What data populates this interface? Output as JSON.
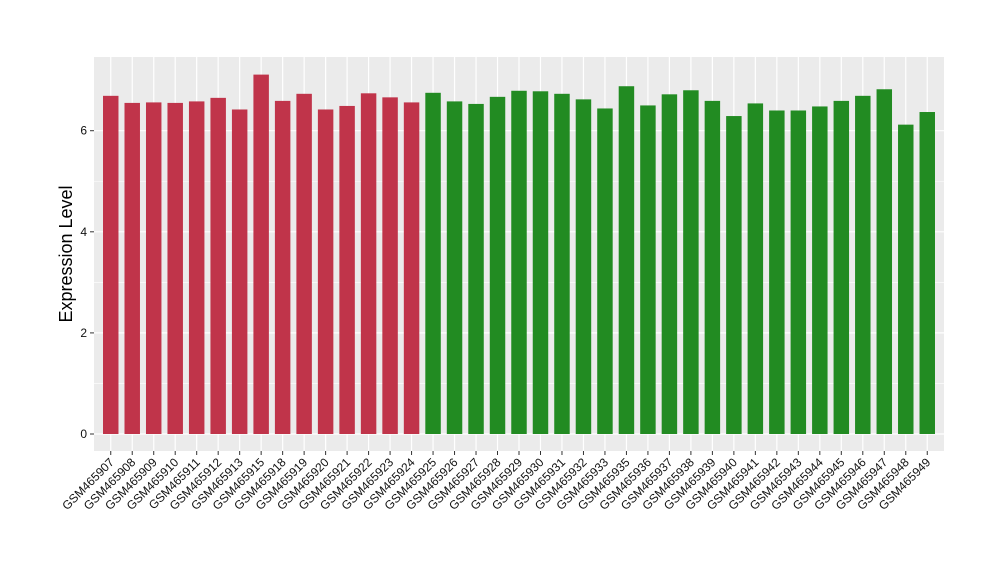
{
  "chart_data": {
    "type": "bar",
    "title": "",
    "xlabel": "",
    "ylabel": "Expression Level",
    "ylim": [
      0,
      7.3
    ],
    "yticks": [
      0,
      2,
      4,
      6
    ],
    "grid": true,
    "legend": "none",
    "colors": {
      "group1": "#C0344A",
      "group2": "#228B22",
      "panel": "#EBEBEB",
      "grid": "#FFFFFF"
    },
    "categories": [
      "GSM465907",
      "GSM465908",
      "GSM465909",
      "GSM465910",
      "GSM465911",
      "GSM465912",
      "GSM465913",
      "GSM465915",
      "GSM465918",
      "GSM465919",
      "GSM465920",
      "GSM465921",
      "GSM465922",
      "GSM465923",
      "GSM465924",
      "GSM465925",
      "GSM465926",
      "GSM465927",
      "GSM465928",
      "GSM465929",
      "GSM465930",
      "GSM465931",
      "GSM465932",
      "GSM465933",
      "GSM465935",
      "GSM465936",
      "GSM465937",
      "GSM465938",
      "GSM465939",
      "GSM465940",
      "GSM465941",
      "GSM465942",
      "GSM465943",
      "GSM465944",
      "GSM465945",
      "GSM465946",
      "GSM465947",
      "GSM465948",
      "GSM465949"
    ],
    "values": [
      6.69,
      6.55,
      6.56,
      6.55,
      6.58,
      6.65,
      6.42,
      7.11,
      6.59,
      6.73,
      6.42,
      6.49,
      6.74,
      6.66,
      6.56,
      6.75,
      6.58,
      6.53,
      6.67,
      6.79,
      6.78,
      6.73,
      6.62,
      6.44,
      6.88,
      6.5,
      6.72,
      6.8,
      6.59,
      6.29,
      6.54,
      6.4,
      6.4,
      6.48,
      6.59,
      6.69,
      6.82,
      6.12,
      6.37
    ],
    "groups": [
      1,
      1,
      1,
      1,
      1,
      1,
      1,
      1,
      1,
      1,
      1,
      1,
      1,
      1,
      1,
      2,
      2,
      2,
      2,
      2,
      2,
      2,
      2,
      2,
      2,
      2,
      2,
      2,
      2,
      2,
      2,
      2,
      2,
      2,
      2,
      2,
      2,
      2,
      2
    ]
  }
}
